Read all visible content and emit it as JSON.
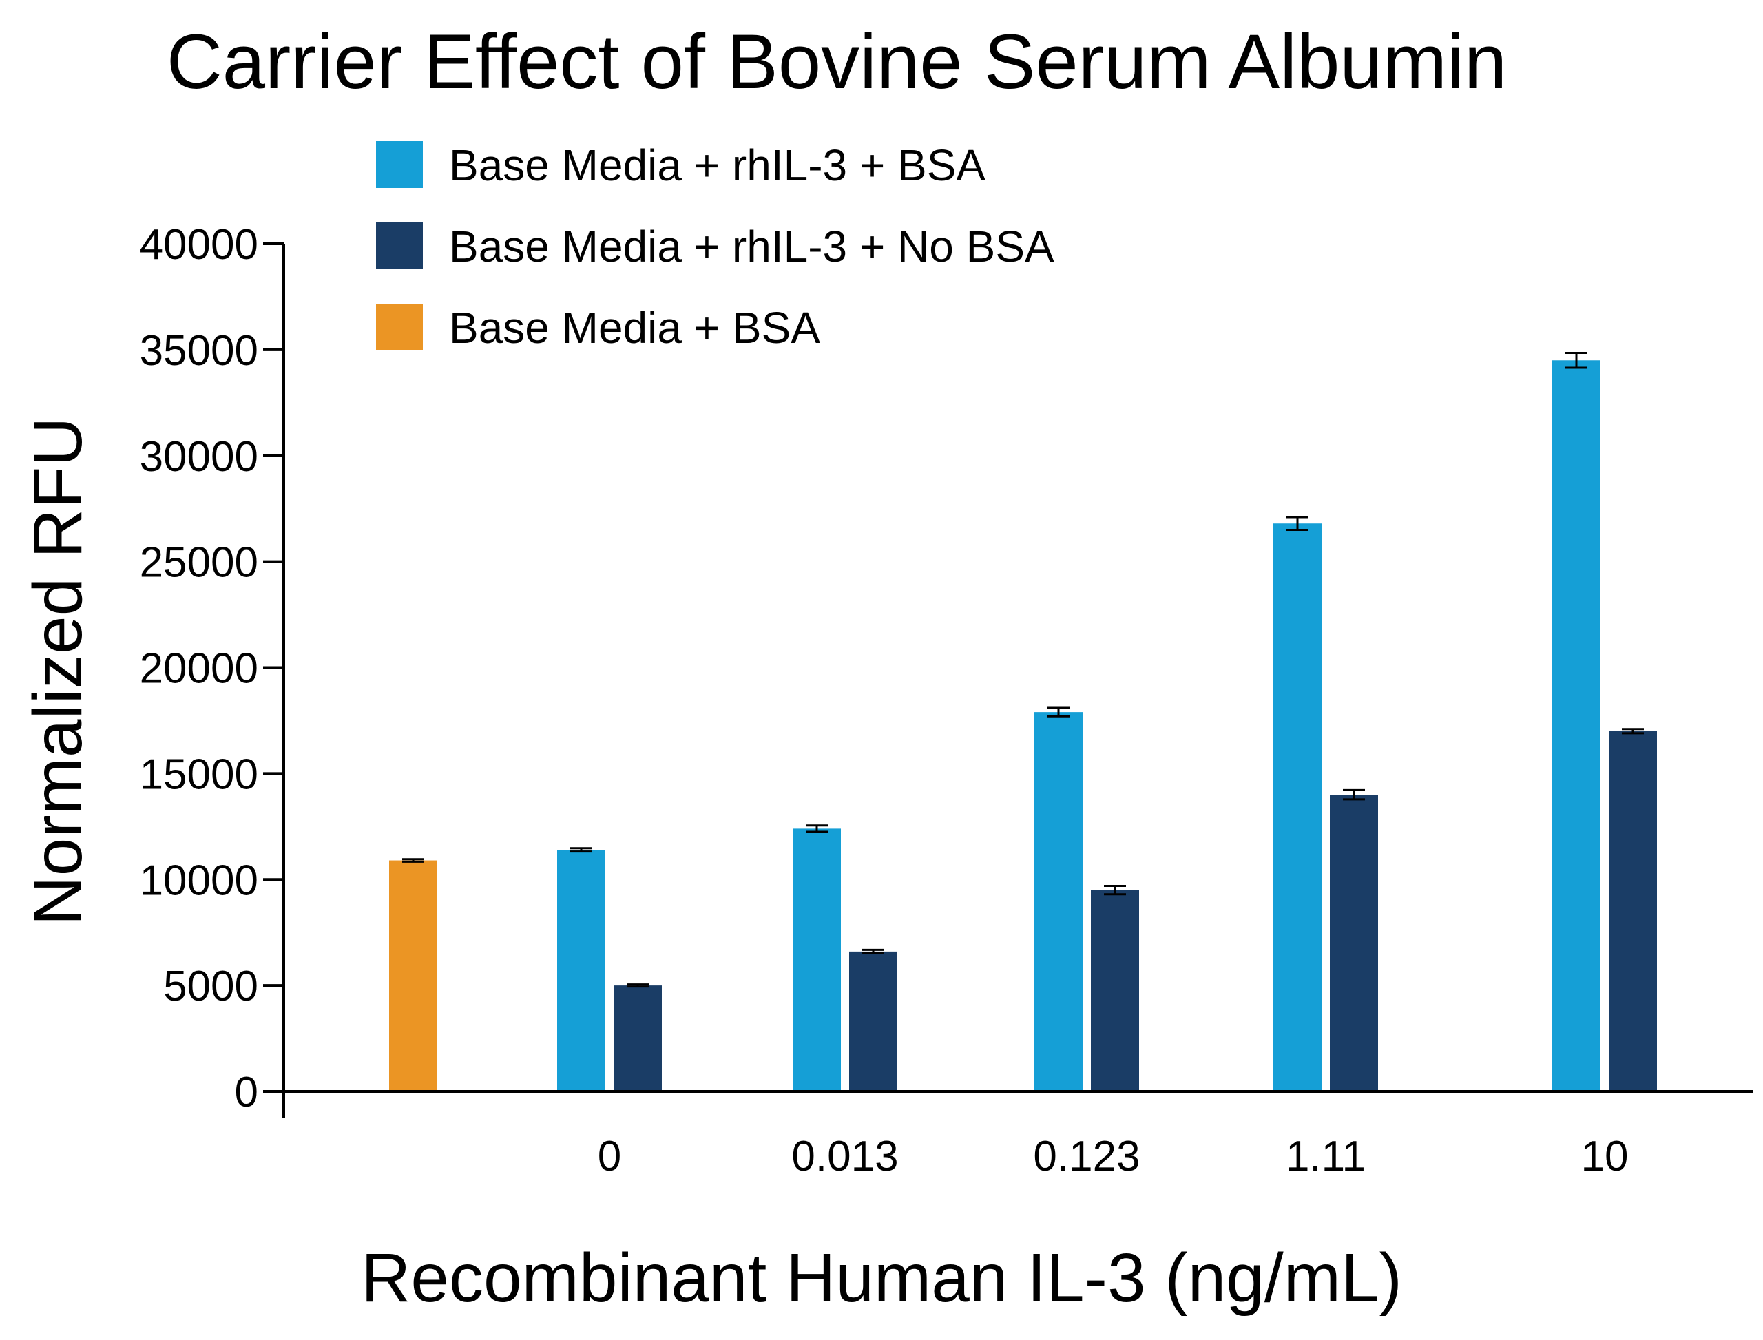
{
  "chart_data": {
    "type": "bar",
    "title": "Carrier Effect of Bovine Serum Albumin",
    "xlabel": "Recombinant Human IL-3 (ng/mL)",
    "ylabel": "Normalized RFU",
    "ylim": [
      0,
      40000
    ],
    "yticks": [
      "0",
      "5000",
      "10000",
      "15000",
      "20000",
      "25000",
      "30000",
      "35000",
      "40000"
    ],
    "categories": [
      "",
      "0",
      "0.013",
      "0.123",
      "1.11",
      "10"
    ],
    "legend_position": "top-left",
    "grid": false,
    "series": [
      {
        "name": "Base Media + rhIL-3 + BSA",
        "color": "#159fd6",
        "values": [
          null,
          11400,
          12400,
          17900,
          26800,
          34500
        ],
        "errors": [
          null,
          80,
          150,
          200,
          300,
          350
        ]
      },
      {
        "name": "Base Media + rhIL-3 + No BSA",
        "color": "#1a3d66",
        "values": [
          null,
          5000,
          6600,
          9500,
          14000,
          17000
        ],
        "errors": [
          null,
          50,
          80,
          200,
          220,
          100
        ]
      },
      {
        "name": "Base Media + BSA",
        "color": "#eb9524",
        "values": [
          10900,
          null,
          null,
          null,
          null,
          null
        ],
        "errors": [
          60,
          null,
          null,
          null,
          null,
          null
        ]
      }
    ]
  }
}
